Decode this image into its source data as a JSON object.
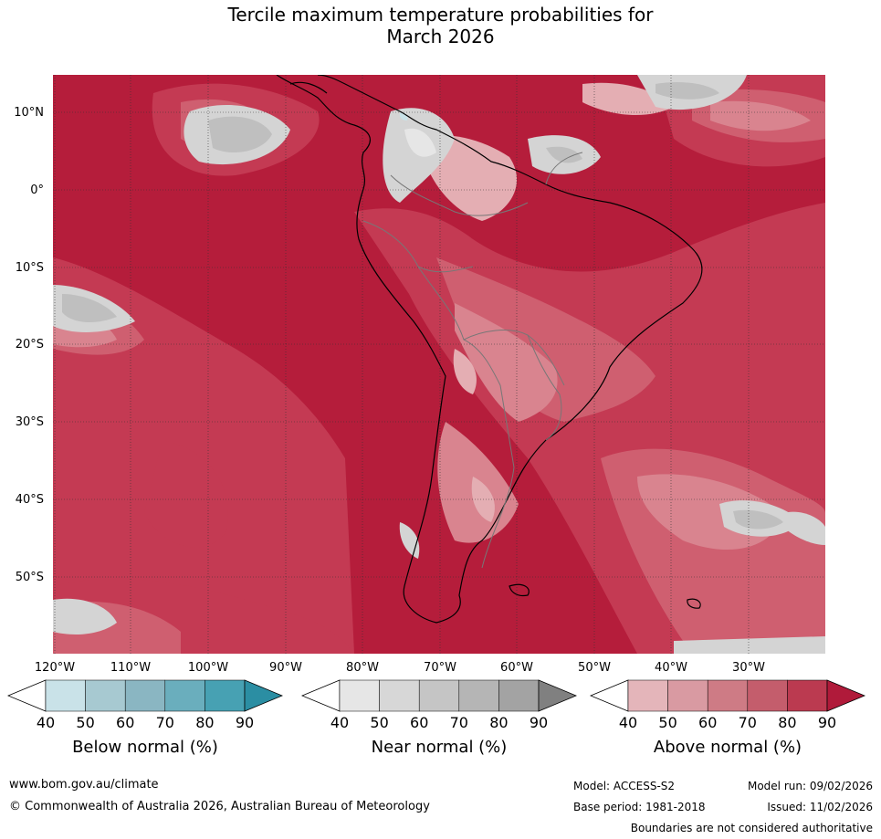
{
  "title": {
    "line1": "Tercile maximum temperature probabilities for",
    "line2": "March 2026"
  },
  "map": {
    "lat_labels": [
      "10°N",
      "0°",
      "10°S",
      "20°S",
      "30°S",
      "40°S",
      "50°S"
    ],
    "lon_labels": [
      "120°W",
      "110°W",
      "100°W",
      "90°W",
      "80°W",
      "70°W",
      "60°W",
      "50°W",
      "40°W",
      "30°W"
    ],
    "colors": {
      "above_90": "#b51d3b",
      "above_80": "#c43a53",
      "above_70": "#cf5f70",
      "above_60": "#d9848f",
      "above_50": "#e4aeb3",
      "near_50": "#d4d4d4",
      "near_60": "#bfbfbf",
      "near_70": "#a8a8a8",
      "below": "#c9e2e8"
    }
  },
  "legends": [
    {
      "label": "Below normal (%)",
      "ticks": [
        "40",
        "50",
        "60",
        "70",
        "80",
        "90"
      ],
      "colors": [
        "#ffffff",
        "#c9e2e8",
        "#a7c9d1",
        "#8ab6c2",
        "#6aaebd",
        "#47a1b3",
        "#2b8ea3"
      ]
    },
    {
      "label": "Near normal (%)",
      "ticks": [
        "40",
        "50",
        "60",
        "70",
        "80",
        "90"
      ],
      "colors": [
        "#ffffff",
        "#e6e6e6",
        "#d7d7d7",
        "#c5c5c5",
        "#b5b5b5",
        "#a3a3a3",
        "#808080"
      ]
    },
    {
      "label": "Above normal (%)",
      "ticks": [
        "40",
        "50",
        "60",
        "70",
        "80",
        "90"
      ],
      "colors": [
        "#ffffff",
        "#e4b5ba",
        "#d99aa2",
        "#ce7b85",
        "#c45d6c",
        "#bb3a50",
        "#b01a3a"
      ]
    }
  ],
  "footer": {
    "url": "www.bom.gov.au/climate",
    "copyright": "© Commonwealth of Australia 2026, Australian Bureau of Meteorology",
    "model": "Model: ACCESS-S2",
    "model_run": "Model run: 09/02/2026",
    "base_period": "Base period: 1981-2018",
    "issued": "Issued: 11/02/2026",
    "disclaimer": "Boundaries are not considered authoritative"
  }
}
